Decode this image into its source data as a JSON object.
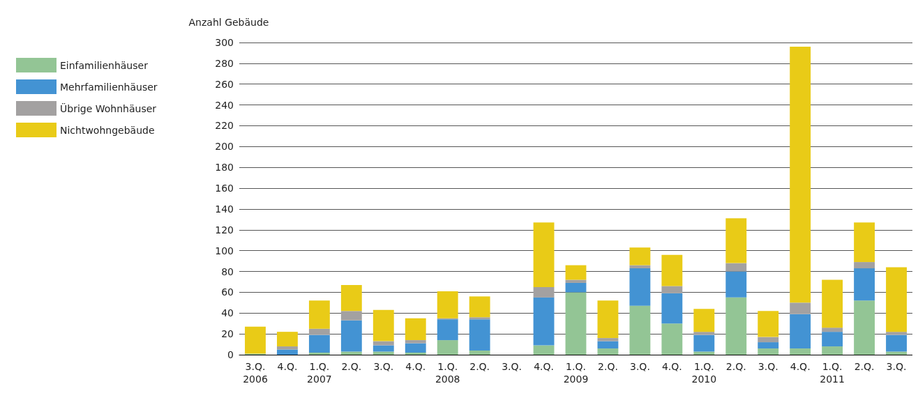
{
  "chart_data": {
    "type": "bar",
    "stacked": true,
    "ylabel": "Anzahl Gebäude",
    "categories": [
      "3.Q.\n2006",
      "4.Q.",
      "1.Q.\n2007",
      "2.Q.",
      "3.Q.",
      "4.Q.",
      "1.Q.\n2008",
      "2.Q.",
      "3.Q.",
      "4.Q.",
      "1.Q.\n2009",
      "2.Q.",
      "3.Q.",
      "4.Q.",
      "1.Q.\n2010",
      "2.Q.",
      "3.Q.",
      "4.Q.",
      "1.Q.\n2011",
      "2.Q.",
      "3.Q."
    ],
    "series": [
      {
        "name": "Einfamilienhäuser",
        "color": "#93c595",
        "values": [
          1,
          0,
          2,
          3,
          3,
          2,
          14,
          4,
          null,
          9,
          60,
          6,
          47,
          30,
          3,
          55,
          6,
          6,
          8,
          52,
          3
        ]
      },
      {
        "name": "Mehrfamilienhäuser",
        "color": "#4393d3",
        "values": [
          0,
          5,
          17,
          30,
          6,
          9,
          20,
          30,
          null,
          46,
          9,
          7,
          36,
          29,
          16,
          25,
          6,
          33,
          14,
          31,
          16
        ]
      },
      {
        "name": "Übrige Wohnhäuser",
        "color": "#a3a1a1",
        "values": [
          0,
          3,
          6,
          9,
          4,
          3,
          1,
          2,
          null,
          10,
          3,
          3,
          3,
          7,
          3,
          8,
          5,
          11,
          4,
          6,
          3
        ]
      },
      {
        "name": "Nichtwohngebäude",
        "color": "#e9cb17",
        "values": [
          26,
          14,
          27,
          25,
          30,
          21,
          26,
          20,
          null,
          62,
          14,
          36,
          17,
          30,
          22,
          43,
          25,
          246,
          46,
          38,
          62
        ]
      }
    ],
    "ylim": [
      0,
      300
    ],
    "yticks": [
      0,
      20,
      40,
      60,
      80,
      100,
      120,
      140,
      160,
      180,
      200,
      220,
      240,
      260,
      280,
      300
    ],
    "grid": "y",
    "legend": "top left"
  }
}
